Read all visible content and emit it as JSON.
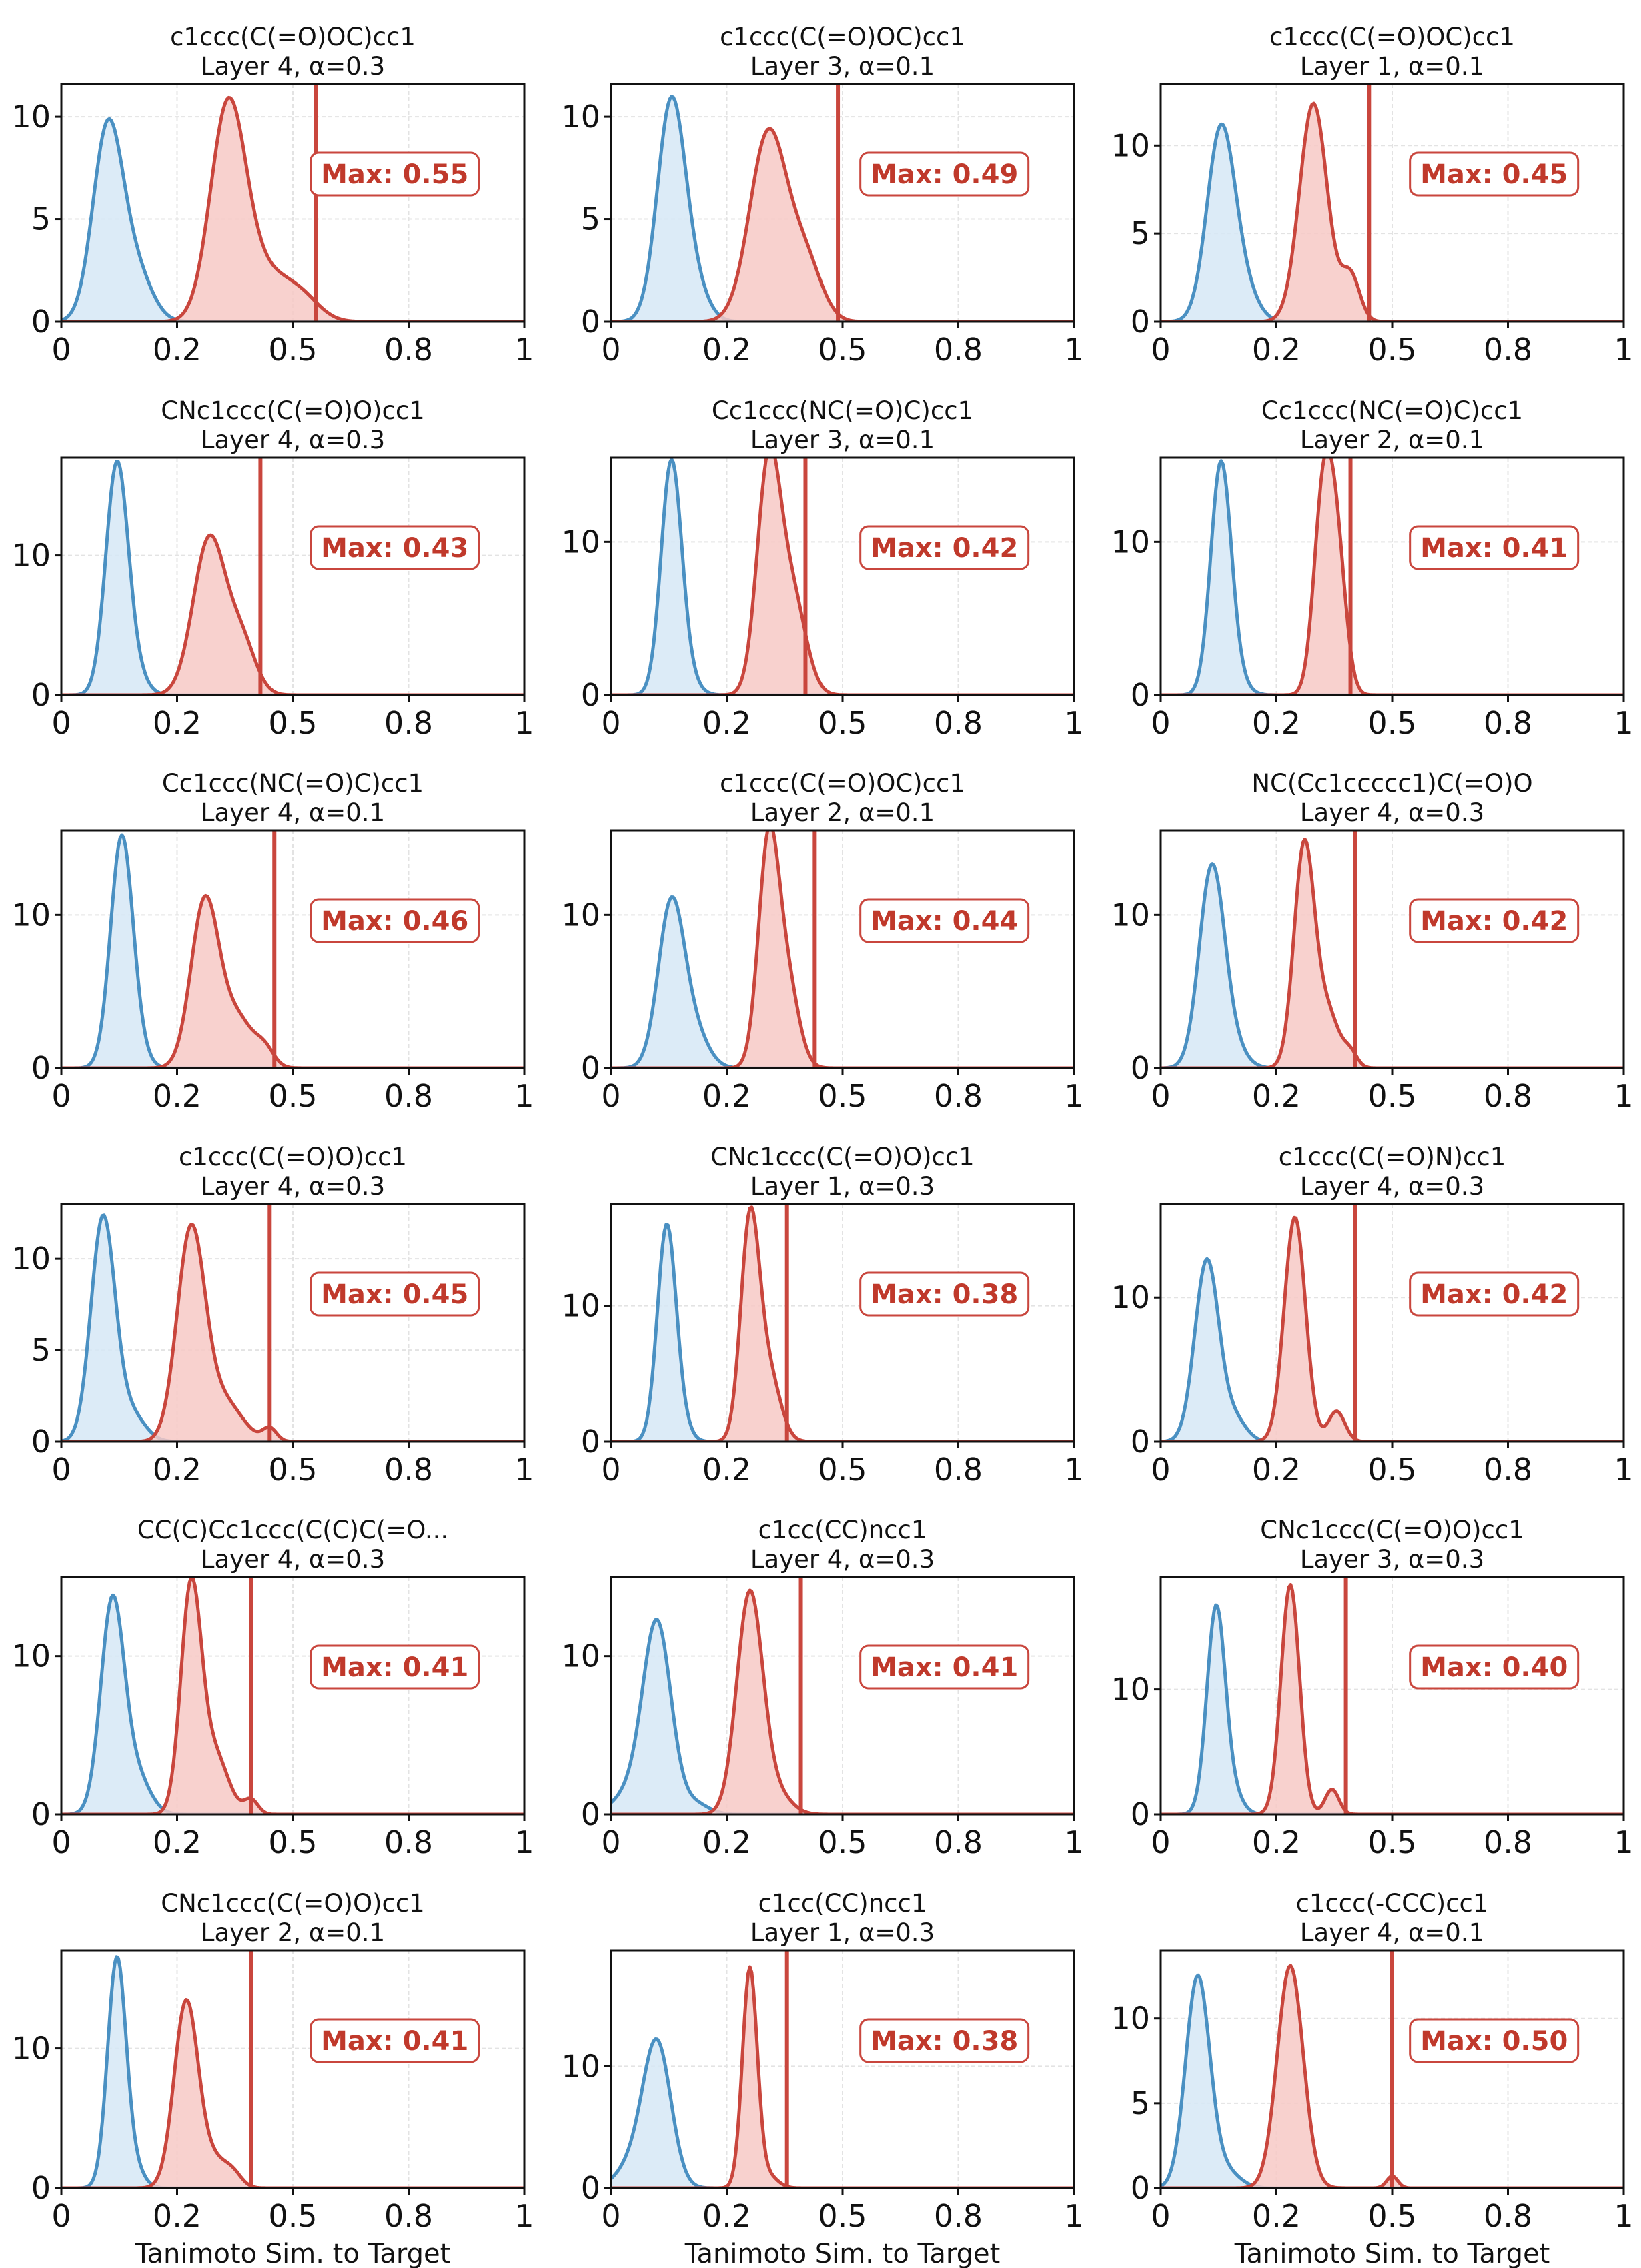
{
  "chart_data": {
    "type": "area",
    "grid": true,
    "xlim": [
      0,
      1
    ],
    "x_ticks": [
      0,
      0.25,
      0.5,
      0.75,
      1
    ],
    "x_tick_labels": [
      "0",
      "0.2",
      "0.5",
      "0.8",
      "1"
    ],
    "xlabel": "Tanimoto Sim. to Target",
    "colors": {
      "baseline": "#4a90c2",
      "baseline_fill": "#d6e8f6",
      "steered": "#c9463d",
      "steered_fill": "#f7c9c5",
      "max_line": "#c9463d"
    },
    "panels": [
      {
        "title": "c1ccc(C(=O)OC)cc1",
        "subtitle": "Layer 4, α=0.3",
        "ylim": [
          0,
          11.6
        ],
        "y_ticks": [
          0,
          5,
          10
        ],
        "max_value": 0.55,
        "max_label": "Max: 0.55",
        "baseline": [
          [
            0.1,
            9.3,
            0.032
          ],
          [
            0.16,
            2.4,
            0.035
          ]
        ],
        "steered": [
          [
            0.36,
            10.3,
            0.038
          ],
          [
            0.44,
            2.2,
            0.05
          ],
          [
            0.52,
            1.0,
            0.04
          ]
        ]
      },
      {
        "title": "c1ccc(C(=O)OC)cc1",
        "subtitle": "Layer 3, α=0.1",
        "ylim": [
          0,
          11.6
        ],
        "y_ticks": [
          0,
          5,
          10
        ],
        "max_value": 0.49,
        "max_label": "Max: 0.49",
        "baseline": [
          [
            0.13,
            10.6,
            0.03
          ],
          [
            0.18,
            1.5,
            0.03
          ]
        ],
        "steered": [
          [
            0.34,
            9.2,
            0.04
          ],
          [
            0.42,
            2.8,
            0.035
          ]
        ]
      },
      {
        "title": "c1ccc(C(=O)OC)cc1",
        "subtitle": "Layer 1, α=0.1",
        "ylim": [
          0,
          13.5
        ],
        "y_ticks": [
          0,
          5,
          10
        ],
        "max_value": 0.45,
        "max_label": "Max: 0.45",
        "baseline": [
          [
            0.13,
            10.8,
            0.03
          ],
          [
            0.18,
            1.6,
            0.03
          ]
        ],
        "steered": [
          [
            0.33,
            12.4,
            0.03
          ],
          [
            0.41,
            2.6,
            0.02
          ]
        ]
      },
      {
        "title": "CNc1ccc(C(=O)O)cc1",
        "subtitle": "Layer 4, α=0.3",
        "ylim": [
          0,
          17
        ],
        "y_ticks": [
          0,
          10
        ],
        "max_value": 0.43,
        "max_label": "Max: 0.43",
        "baseline": [
          [
            0.12,
            16.4,
            0.024
          ],
          [
            0.16,
            1.3,
            0.025
          ]
        ],
        "steered": [
          [
            0.32,
            11.2,
            0.035
          ],
          [
            0.39,
            3.6,
            0.03
          ]
        ]
      },
      {
        "title": "Cc1ccc(NC(=O)C)cc1",
        "subtitle": "Layer 3, α=0.1",
        "ylim": [
          0,
          15.5
        ],
        "y_ticks": [
          0,
          10
        ],
        "max_value": 0.42,
        "max_label": "Max: 0.42",
        "baseline": [
          [
            0.13,
            14.8,
            0.022
          ],
          [
            0.16,
            1.2,
            0.025
          ]
        ],
        "steered": [
          [
            0.34,
            14.5,
            0.025
          ],
          [
            0.39,
            6.5,
            0.03
          ]
        ]
      },
      {
        "title": "Cc1ccc(NC(=O)C)cc1",
        "subtitle": "Layer 2, α=0.1",
        "ylim": [
          0,
          15.5
        ],
        "y_ticks": [
          0,
          10
        ],
        "max_value": 0.41,
        "max_label": "Max: 0.41",
        "baseline": [
          [
            0.13,
            14.8,
            0.022
          ],
          [
            0.16,
            1.0,
            0.025
          ]
        ],
        "steered": [
          [
            0.35,
            12.0,
            0.02
          ],
          [
            0.38,
            9.0,
            0.02
          ]
        ]
      },
      {
        "title": "Cc1ccc(NC(=O)C)cc1",
        "subtitle": "Layer 4, α=0.1",
        "ylim": [
          0,
          15.5
        ],
        "y_ticks": [
          0,
          10
        ],
        "max_value": 0.46,
        "max_label": "Max: 0.46",
        "baseline": [
          [
            0.13,
            14.7,
            0.024
          ],
          [
            0.16,
            1.0,
            0.025
          ]
        ],
        "steered": [
          [
            0.31,
            10.8,
            0.03
          ],
          [
            0.38,
            3.2,
            0.035
          ],
          [
            0.44,
            1.0,
            0.02
          ]
        ]
      },
      {
        "title": "c1ccc(C(=O)OC)cc1",
        "subtitle": "Layer 2, α=0.1",
        "ylim": [
          0,
          15.5
        ],
        "y_ticks": [
          0,
          10
        ],
        "max_value": 0.44,
        "max_label": "Max: 0.44",
        "baseline": [
          [
            0.13,
            10.6,
            0.028
          ],
          [
            0.18,
            2.2,
            0.03
          ]
        ],
        "steered": [
          [
            0.34,
            14.2,
            0.022
          ],
          [
            0.38,
            5.5,
            0.025
          ]
        ]
      },
      {
        "title": "NC(Cc1ccccc1)C(=O)O",
        "subtitle": "Layer 4, α=0.3",
        "ylim": [
          0,
          15.5
        ],
        "y_ticks": [
          0,
          10
        ],
        "max_value": 0.42,
        "max_label": "Max: 0.42",
        "baseline": [
          [
            0.11,
            12.7,
            0.027
          ],
          [
            0.15,
            1.5,
            0.03
          ]
        ],
        "steered": [
          [
            0.31,
            14.4,
            0.022
          ],
          [
            0.36,
            3.6,
            0.025
          ],
          [
            0.41,
            0.9,
            0.015
          ]
        ]
      },
      {
        "title": "c1ccc(C(=O)O)cc1",
        "subtitle": "Layer 4, α=0.3",
        "ylim": [
          0,
          13
        ],
        "y_ticks": [
          0,
          5,
          10
        ],
        "max_value": 0.45,
        "max_label": "Max: 0.45",
        "baseline": [
          [
            0.09,
            12.2,
            0.026
          ],
          [
            0.15,
            1.5,
            0.03
          ]
        ],
        "steered": [
          [
            0.28,
            11.4,
            0.03
          ],
          [
            0.35,
            2.2,
            0.04
          ],
          [
            0.45,
            0.7,
            0.015
          ]
        ]
      },
      {
        "title": "CNc1ccc(C(=O)O)cc1",
        "subtitle": "Layer 1, α=0.3",
        "ylim": [
          0,
          17.5
        ],
        "y_ticks": [
          0,
          10
        ],
        "max_value": 0.38,
        "max_label": "Max: 0.38",
        "baseline": [
          [
            0.12,
            15.6,
            0.02
          ],
          [
            0.15,
            1.3,
            0.02
          ]
        ],
        "steered": [
          [
            0.3,
            15.8,
            0.02
          ],
          [
            0.34,
            5.0,
            0.025
          ]
        ]
      },
      {
        "title": "c1ccc(C(=O)N)cc1",
        "subtitle": "Layer 4, α=0.3",
        "ylim": [
          0,
          16.5
        ],
        "y_ticks": [
          0,
          10
        ],
        "max_value": 0.42,
        "max_label": "Max: 0.42",
        "baseline": [
          [
            0.1,
            12.6,
            0.026
          ],
          [
            0.16,
            1.5,
            0.025
          ]
        ],
        "steered": [
          [
            0.29,
            15.6,
            0.023
          ],
          [
            0.38,
            2.1,
            0.018
          ]
        ]
      },
      {
        "title": "CC(C)Cc1ccc(C(C)C(=O...",
        "subtitle": "Layer 4, α=0.3",
        "ylim": [
          0,
          15
        ],
        "y_ticks": [
          0,
          10
        ],
        "max_value": 0.41,
        "max_label": "Max: 0.41",
        "baseline": [
          [
            0.11,
            13.2,
            0.025
          ],
          [
            0.16,
            2.5,
            0.03
          ]
        ],
        "steered": [
          [
            0.28,
            14.0,
            0.022
          ],
          [
            0.33,
            3.8,
            0.03
          ],
          [
            0.41,
            0.9,
            0.015
          ]
        ]
      },
      {
        "title": "c1cc(CC)ncc1",
        "subtitle": "Layer 4, α=0.3",
        "ylim": [
          0,
          15
        ],
        "y_ticks": [
          0,
          10
        ],
        "max_value": 0.41,
        "max_label": "Max: 0.41",
        "baseline": [
          [
            0.1,
            11.6,
            0.03
          ],
          [
            0.05,
            1.5,
            0.04
          ],
          [
            0.18,
            0.7,
            0.03
          ]
        ],
        "steered": [
          [
            0.3,
            14.0,
            0.028
          ],
          [
            0.36,
            1.2,
            0.03
          ]
        ]
      },
      {
        "title": "CNc1ccc(C(=O)O)cc1",
        "subtitle": "Layer 3, α=0.3",
        "ylim": [
          0,
          19
        ],
        "y_ticks": [
          0,
          10
        ],
        "max_value": 0.4,
        "max_label": "Max: 0.40",
        "baseline": [
          [
            0.12,
            16.6,
            0.02
          ],
          [
            0.16,
            1.3,
            0.02
          ]
        ],
        "steered": [
          [
            0.28,
            18.4,
            0.02
          ],
          [
            0.37,
            2.0,
            0.015
          ]
        ]
      },
      {
        "title": "CNc1ccc(C(=O)O)cc1",
        "subtitle": "Layer 2, α=0.1",
        "ylim": [
          0,
          17
        ],
        "y_ticks": [
          0,
          10
        ],
        "max_value": 0.41,
        "max_label": "Max: 0.41",
        "baseline": [
          [
            0.12,
            16.4,
            0.02
          ],
          [
            0.16,
            1.2,
            0.02
          ]
        ],
        "steered": [
          [
            0.27,
            13.4,
            0.026
          ],
          [
            0.33,
            1.8,
            0.025
          ],
          [
            0.37,
            1.0,
            0.02
          ]
        ]
      },
      {
        "title": "c1cc(CC)ncc1",
        "subtitle": "Layer 1, α=0.3",
        "ylim": [
          0,
          19.5
        ],
        "y_ticks": [
          0,
          10
        ],
        "max_value": 0.38,
        "max_label": "Max: 0.38",
        "baseline": [
          [
            0.1,
            11.5,
            0.03
          ],
          [
            0.05,
            2.0,
            0.035
          ]
        ],
        "steered": [
          [
            0.3,
            18.0,
            0.016
          ],
          [
            0.34,
            1.0,
            0.02
          ]
        ]
      },
      {
        "title": "c1ccc(-CCC)cc1",
        "subtitle": "Layer 4, α=0.1",
        "ylim": [
          0,
          14
        ],
        "y_ticks": [
          0,
          5,
          10
        ],
        "max_value": 0.5,
        "max_label": "Max: 0.50",
        "baseline": [
          [
            0.08,
            12.4,
            0.026
          ],
          [
            0.14,
            1.0,
            0.03
          ]
        ],
        "steered": [
          [
            0.28,
            13.1,
            0.028
          ],
          [
            0.5,
            0.7,
            0.012
          ]
        ]
      }
    ]
  }
}
